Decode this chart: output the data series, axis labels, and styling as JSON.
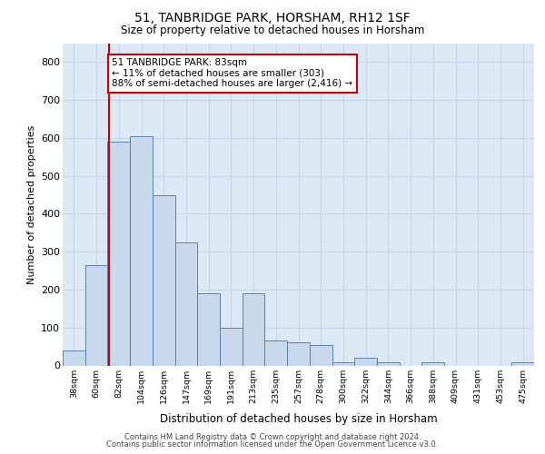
{
  "title_line1": "51, TANBRIDGE PARK, HORSHAM, RH12 1SF",
  "title_line2": "Size of property relative to detached houses in Horsham",
  "xlabel": "Distribution of detached houses by size in Horsham",
  "ylabel": "Number of detached properties",
  "footer_line1": "Contains HM Land Registry data © Crown copyright and database right 2024.",
  "footer_line2": "Contains public sector information licensed under the Open Government Licence v3.0.",
  "bar_color": "#c9d9ed",
  "bar_edge_color": "#5b80b0",
  "grid_color": "#c8d4e4",
  "background_color": "#dce8f5",
  "property_line_color": "#cc0000",
  "annotation_text": "51 TANBRIDGE PARK: 83sqm\n← 11% of detached houses are smaller (303)\n88% of semi-detached houses are larger (2,416) →",
  "categories": [
    "38sqm",
    "60sqm",
    "82sqm",
    "104sqm",
    "126sqm",
    "147sqm",
    "169sqm",
    "191sqm",
    "213sqm",
    "235sqm",
    "257sqm",
    "278sqm",
    "300sqm",
    "322sqm",
    "344sqm",
    "366sqm",
    "388sqm",
    "409sqm",
    "431sqm",
    "453sqm",
    "475sqm"
  ],
  "values": [
    40,
    265,
    590,
    605,
    450,
    325,
    190,
    100,
    190,
    65,
    60,
    55,
    8,
    20,
    8,
    0,
    8,
    0,
    0,
    0,
    8
  ],
  "ylim": [
    0,
    850
  ],
  "yticks": [
    0,
    100,
    200,
    300,
    400,
    500,
    600,
    700,
    800
  ],
  "property_line_x": 1.58
}
